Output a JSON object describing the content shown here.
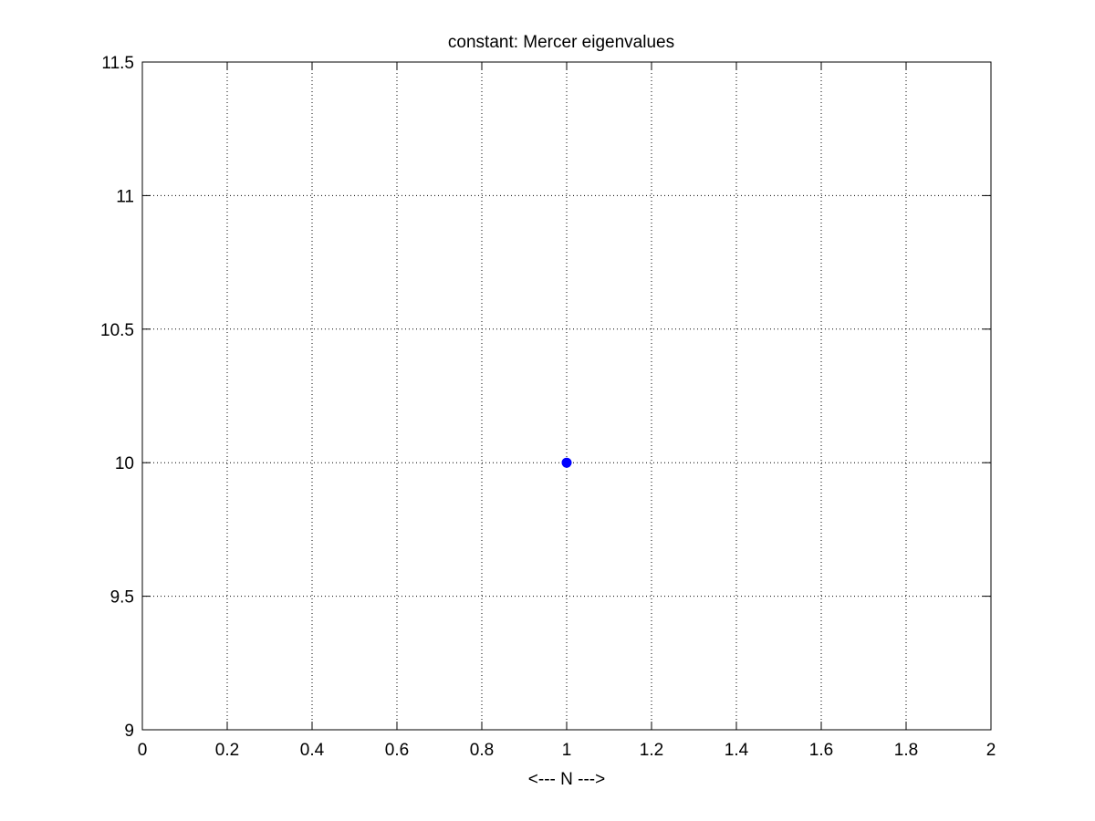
{
  "chart_data": {
    "type": "scatter",
    "title": "constant: Mercer eigenvalues",
    "xlabel": "<--- N --->",
    "ylabel": "",
    "xlim": [
      0,
      2
    ],
    "ylim": [
      9,
      11.5
    ],
    "xticks": [
      "0",
      "0.2",
      "0.4",
      "0.6",
      "0.8",
      "1",
      "1.2",
      "1.4",
      "1.6",
      "1.8",
      "2"
    ],
    "yticks": [
      "9",
      "9.5",
      "10",
      "10.5",
      "11",
      "11.5"
    ],
    "grid": true,
    "legend": "none",
    "series": [
      {
        "color": "#0000ff",
        "marker": "circle",
        "points": [
          {
            "x": 1,
            "y": 10
          }
        ]
      }
    ]
  }
}
